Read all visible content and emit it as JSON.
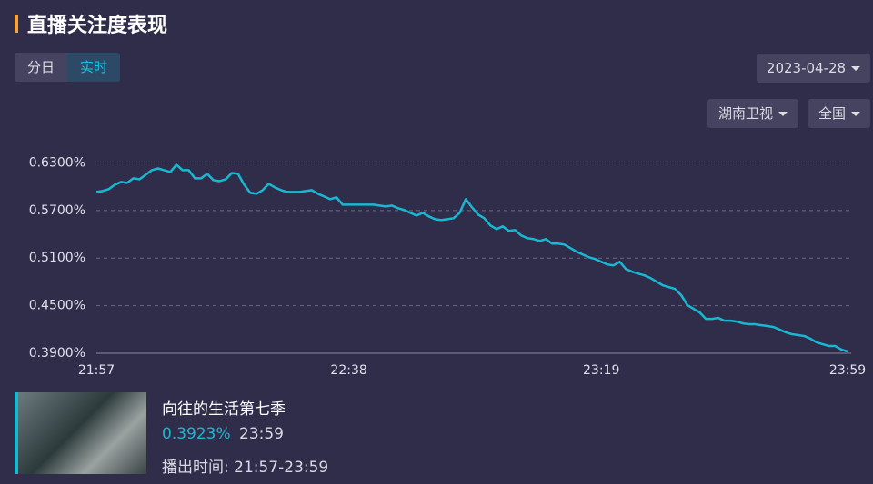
{
  "header": {
    "title": "直播关注度表现"
  },
  "tabs": [
    "分日",
    "实时"
  ],
  "filters": {
    "date": "2023-04-28",
    "channel": "湖南卫视",
    "region": "全国"
  },
  "chart_data": {
    "type": "line",
    "color": "#19b8d2",
    "grid": true,
    "ylim": [
      0.39,
      0.65
    ],
    "yticks": [
      {
        "value": 0.39,
        "label": "0.3900%"
      },
      {
        "value": 0.45,
        "label": "0.4500%"
      },
      {
        "value": 0.51,
        "label": "0.5100%"
      },
      {
        "value": 0.57,
        "label": "0.5700%"
      },
      {
        "value": 0.63,
        "label": "0.6300%"
      }
    ],
    "categories": [
      "21:57",
      null,
      null,
      null,
      null,
      null,
      null,
      null,
      null,
      null,
      null,
      null,
      null,
      null,
      null,
      null,
      null,
      null,
      null,
      null,
      null,
      null,
      null,
      null,
      null,
      null,
      null,
      null,
      null,
      null,
      null,
      null,
      null,
      null,
      null,
      null,
      null,
      null,
      null,
      null,
      null,
      "22:38",
      null,
      null,
      null,
      null,
      null,
      null,
      null,
      null,
      null,
      null,
      null,
      null,
      null,
      null,
      null,
      null,
      null,
      null,
      null,
      null,
      null,
      null,
      null,
      null,
      null,
      null,
      null,
      null,
      null,
      null,
      null,
      null,
      null,
      null,
      null,
      null,
      null,
      null,
      null,
      null,
      "23:19",
      null,
      null,
      null,
      null,
      null,
      null,
      null,
      null,
      null,
      null,
      null,
      null,
      null,
      null,
      null,
      null,
      null,
      null,
      null,
      null,
      null,
      null,
      null,
      null,
      null,
      null,
      null,
      null,
      null,
      null,
      null,
      null,
      null,
      null,
      null,
      null,
      null,
      null,
      null,
      "23:59"
    ],
    "values": [
      0.5934,
      0.5946,
      0.5969,
      0.6026,
      0.606,
      0.6049,
      0.6106,
      0.6094,
      0.6151,
      0.6209,
      0.6231,
      0.6209,
      0.6186,
      0.6277,
      0.6209,
      0.6209,
      0.6106,
      0.6106,
      0.6163,
      0.6083,
      0.6071,
      0.6094,
      0.6174,
      0.6163,
      0.6026,
      0.5923,
      0.5911,
      0.5957,
      0.6037,
      0.5991,
      0.5957,
      0.5934,
      0.5934,
      0.5934,
      0.5946,
      0.5957,
      0.5911,
      0.5877,
      0.5843,
      0.5866,
      0.5774,
      0.5774,
      0.5774,
      0.5774,
      0.5774,
      0.5774,
      0.5763,
      0.5751,
      0.5763,
      0.5729,
      0.5706,
      0.5671,
      0.5637,
      0.5671,
      0.5626,
      0.5591,
      0.558,
      0.5591,
      0.5603,
      0.5671,
      0.5843,
      0.574,
      0.5649,
      0.5603,
      0.5511,
      0.5466,
      0.55,
      0.5443,
      0.5454,
      0.5386,
      0.5351,
      0.534,
      0.5317,
      0.534,
      0.5283,
      0.5283,
      0.5271,
      0.5226,
      0.518,
      0.5146,
      0.5111,
      0.5089,
      0.5054,
      0.502,
      0.5009,
      0.5054,
      0.4963,
      0.4929,
      0.4906,
      0.4883,
      0.4849,
      0.4803,
      0.4757,
      0.4734,
      0.4711,
      0.4631,
      0.4506,
      0.446,
      0.4414,
      0.4334,
      0.4334,
      0.4346,
      0.4311,
      0.4311,
      0.43,
      0.4277,
      0.4266,
      0.4266,
      0.4254,
      0.4243,
      0.4231,
      0.4197,
      0.4163,
      0.414,
      0.4129,
      0.4117,
      0.4083,
      0.4037,
      0.4014,
      0.3991,
      0.3991,
      0.3946,
      0.3923
    ]
  },
  "card": {
    "show": "向往的生活第七季",
    "rating": "0.3923%",
    "time": "23:59",
    "air_label": "播出时间: 21:57-23:59"
  }
}
